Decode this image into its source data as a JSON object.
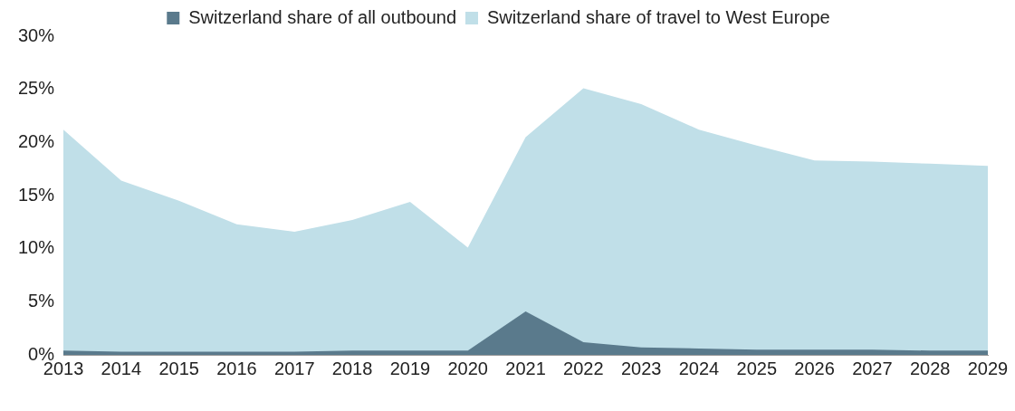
{
  "chart_data": {
    "type": "area",
    "categories": [
      "2013",
      "2014",
      "2015",
      "2016",
      "2017",
      "2018",
      "2019",
      "2020",
      "2021",
      "2022",
      "2023",
      "2024",
      "2025",
      "2026",
      "2027",
      "2028",
      "2029"
    ],
    "series": [
      {
        "name": "Switzerland share of all outbound",
        "color": "#5a7a8c",
        "values": [
          0.4,
          0.3,
          0.3,
          0.3,
          0.3,
          0.4,
          0.4,
          0.4,
          4.1,
          1.2,
          0.7,
          0.6,
          0.5,
          0.5,
          0.5,
          0.4,
          0.4
        ]
      },
      {
        "name": "Switzerland share of travel to West Europe",
        "color": "#c0dfe8",
        "values": [
          21.2,
          16.4,
          14.5,
          12.3,
          11.6,
          12.7,
          14.4,
          10.1,
          20.5,
          25.1,
          23.6,
          21.2,
          19.7,
          18.3,
          18.2,
          18.0,
          17.8
        ]
      }
    ],
    "ylim": [
      0,
      30
    ],
    "yticks": [
      {
        "value": 0,
        "label": "0%"
      },
      {
        "value": 5,
        "label": "5%"
      },
      {
        "value": 10,
        "label": "10%"
      },
      {
        "value": 15,
        "label": "15%"
      },
      {
        "value": 20,
        "label": "20%"
      },
      {
        "value": 25,
        "label": "25%"
      },
      {
        "value": 30,
        "label": "30%"
      }
    ],
    "grid": false,
    "legend": "top"
  }
}
